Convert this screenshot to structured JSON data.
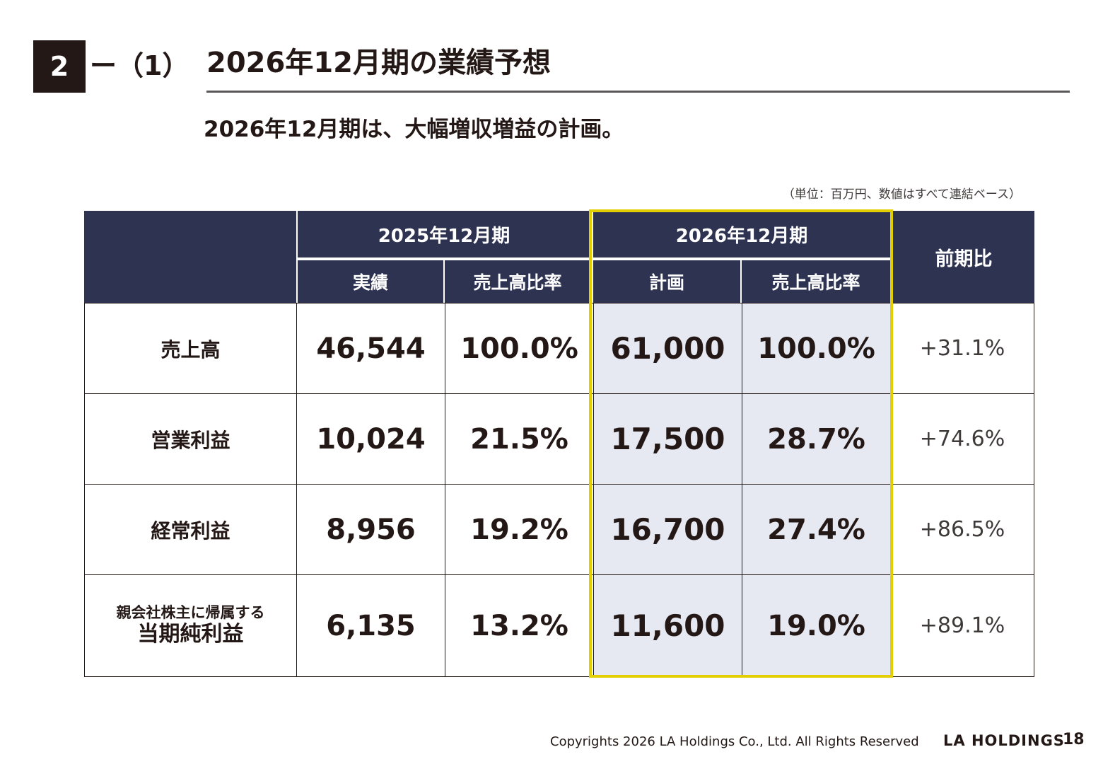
{
  "header": {
    "section_number": "2",
    "section_sub": "ー（1）",
    "title": "2026年12月期の業績予想"
  },
  "subtitle": "2026年12月期は、大幅増収増益の計画。",
  "unit_note": "（単位：百万円、数値はすべて連結ベース）",
  "table": {
    "header": {
      "period_2025": "2025年12月期",
      "period_2026": "2026年12月期",
      "actual": "実績",
      "sales_ratio_2025": "売上高比率",
      "plan": "計画",
      "sales_ratio_2026": "売上高比率",
      "yoy": "前期比"
    },
    "rows": [
      {
        "label": "売上高",
        "actual": "46,544",
        "actual_ratio": "100.0%",
        "plan": "61,000",
        "plan_ratio": "100.0%",
        "yoy": "+31.1%"
      },
      {
        "label": "営業利益",
        "actual": "10,024",
        "actual_ratio": "21.5%",
        "plan": "17,500",
        "plan_ratio": "28.7%",
        "yoy": "+74.6%"
      },
      {
        "label": "経常利益",
        "actual": "8,956",
        "actual_ratio": "19.2%",
        "plan": "16,700",
        "plan_ratio": "27.4%",
        "yoy": "+86.5%"
      },
      {
        "label_top": "親会社株主に帰属する",
        "label_bottom": "当期純利益",
        "actual": "6,135",
        "actual_ratio": "13.2%",
        "plan": "11,600",
        "plan_ratio": "19.0%",
        "yoy": "+89.1%"
      }
    ]
  },
  "footer": {
    "copyright": "Copyrights 2026 LA Holdings Co., Ltd.  All Rights Reserved",
    "logo": "LA HOLDINGS",
    "page": "18"
  },
  "colors": {
    "header_bg": "#2d3350",
    "plan_bg": "#e6e8f2",
    "highlight": "#e3cf00",
    "text": "#231815"
  }
}
